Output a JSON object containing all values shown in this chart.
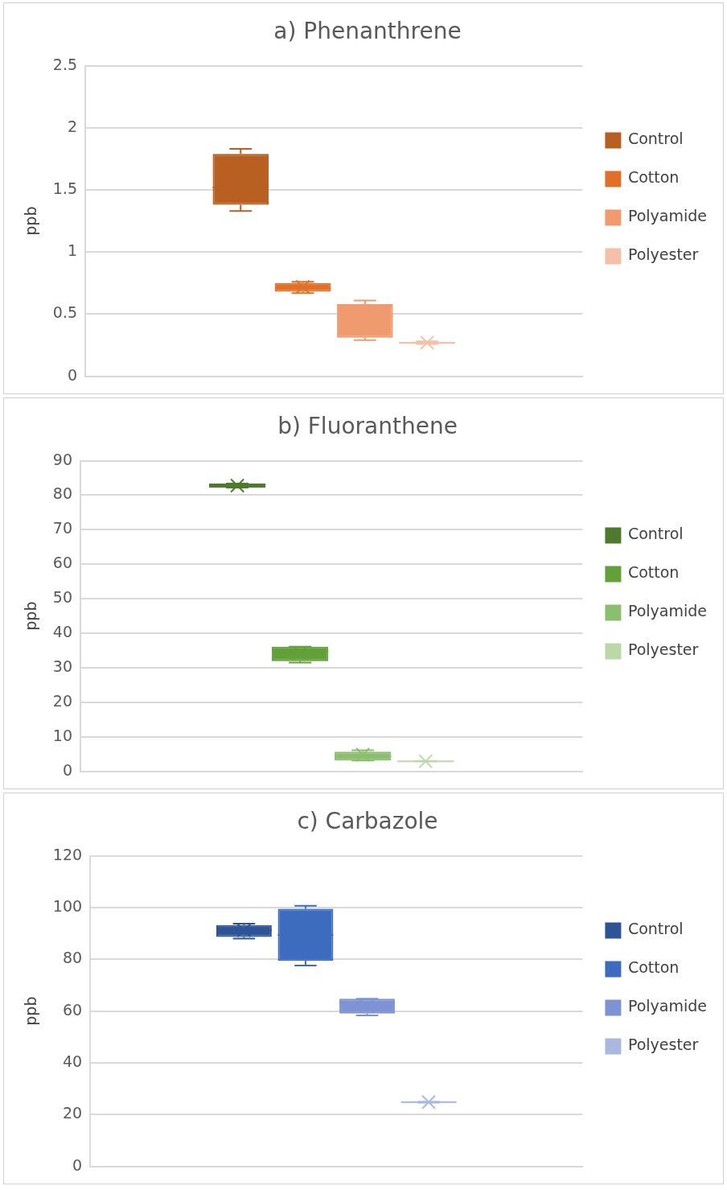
{
  "chart_data": [
    {
      "type": "box",
      "title": "a) Phenanthrene",
      "ylabel": "ppb",
      "categories": [
        null
      ],
      "ylim": [
        0,
        2.5
      ],
      "yticks": [
        0,
        0.5,
        1,
        1.5,
        2,
        2.5
      ],
      "grid": "y",
      "legend": "right",
      "tick_labels": "y",
      "series": [
        {
          "name": "Control",
          "color": "#b85f22",
          "boxes": [
            {
              "low": 1.33,
              "q1": 1.38,
              "median": 1.52,
              "q3": 1.79,
              "high": 1.83,
              "mean": 1.58
            }
          ]
        },
        {
          "name": "Cotton",
          "color": "#e07028",
          "boxes": [
            {
              "low": 0.67,
              "q1": 0.68,
              "median": 0.71,
              "q3": 0.75,
              "high": 0.76,
              "mean": 0.72
            }
          ]
        },
        {
          "name": "Polyamide",
          "color": "#f09a70",
          "boxes": [
            {
              "low": 0.29,
              "q1": 0.31,
              "median": 0.48,
              "q3": 0.58,
              "high": 0.61,
              "mean": 0.45
            }
          ]
        },
        {
          "name": "Polyester",
          "color": "#f4c0a8",
          "boxes": [
            {
              "low": 0.26,
              "q1": 0.26,
              "median": 0.27,
              "q3": 0.27,
              "high": 0.28,
              "mean": 0.27
            }
          ]
        }
      ]
    },
    {
      "type": "box",
      "title": "b) Fluoranthene",
      "ylabel": "ppb",
      "categories": [
        null
      ],
      "ylim": [
        0,
        90
      ],
      "yticks": [
        0,
        10,
        20,
        30,
        40,
        50,
        60,
        70,
        80,
        90
      ],
      "grid": "y",
      "legend": "right",
      "tick_labels": "y",
      "series": [
        {
          "name": "Control",
          "color": "#4e7a2e",
          "boxes": [
            {
              "low": 82.2,
              "q1": 82.2,
              "median": 83,
              "q3": 83.4,
              "high": 83.4,
              "mean": 82.8
            }
          ]
        },
        {
          "name": "Cotton",
          "color": "#62a03a",
          "boxes": [
            {
              "low": 31.5,
              "q1": 31.9,
              "median": 34.8,
              "q3": 36.1,
              "high": 36.1,
              "mean": 34.3
            }
          ]
        },
        {
          "name": "Polyamide",
          "color": "#8cbe70",
          "boxes": [
            {
              "low": 3.1,
              "q1": 3.1,
              "median": 4.4,
              "q3": 5.7,
              "high": 6.1,
              "mean": 4.8
            }
          ]
        },
        {
          "name": "Polyester",
          "color": "#bcd8a8",
          "boxes": [
            {
              "low": 2.8,
              "q1": 2.8,
              "median": 2.9,
              "q3": 3,
              "high": 3,
              "mean": 2.9
            }
          ]
        }
      ]
    },
    {
      "type": "box",
      "title": "c) Carbazole",
      "ylabel": "ppb",
      "categories": [
        null
      ],
      "ylim": [
        0,
        120
      ],
      "yticks": [
        0,
        20,
        40,
        60,
        80,
        100,
        120
      ],
      "grid": "y",
      "legend": "right",
      "tick_labels": "y",
      "series": [
        {
          "name": "Control",
          "color": "#2e5496",
          "boxes": [
            {
              "low": 88,
              "q1": 88.6,
              "median": 91.3,
              "q3": 93.2,
              "high": 93.8,
              "mean": 91.2
            }
          ]
        },
        {
          "name": "Cotton",
          "color": "#3d6bbd",
          "boxes": [
            {
              "low": 77.6,
              "q1": 79.4,
              "median": 89.4,
              "q3": 99.5,
              "high": 100.7,
              "mean": 89.5
            }
          ]
        },
        {
          "name": "Polyamide",
          "color": "#7d93d3",
          "boxes": [
            {
              "low": 58.3,
              "q1": 59,
              "median": 63.3,
              "q3": 64.8,
              "high": 64.8,
              "mean": 62
            }
          ]
        },
        {
          "name": "Polyester",
          "color": "#aab8e0",
          "boxes": [
            {
              "low": 24.6,
              "q1": 24.6,
              "median": 24.8,
              "q3": 25,
              "high": 25,
              "mean": 24.8
            }
          ]
        }
      ]
    }
  ]
}
